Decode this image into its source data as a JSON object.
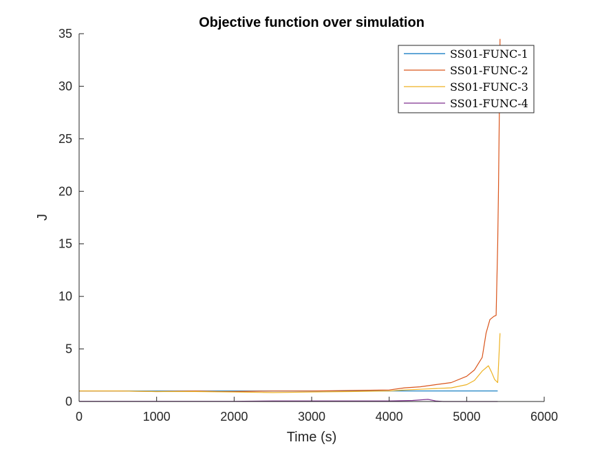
{
  "chart_data": {
    "type": "line",
    "title": "Objective function over simulation",
    "xlabel": "Time (s)",
    "ylabel": "J",
    "xlim": [
      0,
      6000
    ],
    "ylim": [
      0,
      35
    ],
    "xticks": [
      "0",
      "1000",
      "2000",
      "3000",
      "4000",
      "5000",
      "6000"
    ],
    "yticks": [
      "0",
      "5",
      "10",
      "15",
      "20",
      "25",
      "30",
      "35"
    ],
    "grid": false,
    "legend_position": "top-right",
    "series": [
      {
        "name": "SS01-FUNC-1",
        "color": "#0072BD",
        "x": [
          0,
          1000,
          2000,
          3000,
          4000,
          5000,
          5400
        ],
        "y": [
          1.0,
          1.0,
          1.0,
          1.0,
          1.0,
          1.0,
          1.0
        ]
      },
      {
        "name": "SS01-FUNC-2",
        "color": "#D95319",
        "x": [
          0,
          500,
          1000,
          1500,
          1800,
          2000,
          2500,
          3000,
          3500,
          4000,
          4200,
          4400,
          4600,
          4800,
          5000,
          5100,
          5200,
          5250,
          5300,
          5350,
          5380,
          5400,
          5410,
          5420,
          5430
        ],
        "y": [
          1.0,
          1.0,
          0.95,
          1.0,
          0.95,
          0.95,
          1.0,
          1.0,
          1.05,
          1.1,
          1.3,
          1.4,
          1.6,
          1.8,
          2.4,
          3.0,
          4.2,
          6.5,
          7.8,
          8.1,
          8.2,
          15.0,
          20.0,
          27.0,
          34.5
        ]
      },
      {
        "name": "SS01-FUNC-3",
        "color": "#EDB120",
        "x": [
          0,
          500,
          1000,
          1500,
          2000,
          2500,
          3000,
          3500,
          4000,
          4200,
          4500,
          4800,
          5000,
          5100,
          5200,
          5280,
          5320,
          5360,
          5400,
          5430
        ],
        "y": [
          1.0,
          1.0,
          0.95,
          0.95,
          0.9,
          0.85,
          0.9,
          0.95,
          1.0,
          1.1,
          1.2,
          1.3,
          1.6,
          2.0,
          2.9,
          3.4,
          2.8,
          2.1,
          1.8,
          6.5
        ]
      },
      {
        "name": "SS01-FUNC-4",
        "color": "#7E2F8E",
        "x": [
          0,
          500,
          1000,
          1500,
          2000,
          2500,
          3000,
          3500,
          4000,
          4300,
          4500,
          4600,
          4700,
          4800,
          5000,
          5100,
          5200,
          5280,
          5320,
          5360,
          5400
        ],
        "y": [
          0.02,
          0.02,
          0.02,
          0.02,
          0.02,
          0.05,
          0.05,
          0.05,
          0.05,
          0.1,
          0.2,
          0.05,
          0.0,
          0.0,
          0.0,
          0.0,
          0.0,
          0.0,
          0.0,
          0.0,
          0.0
        ]
      }
    ]
  }
}
